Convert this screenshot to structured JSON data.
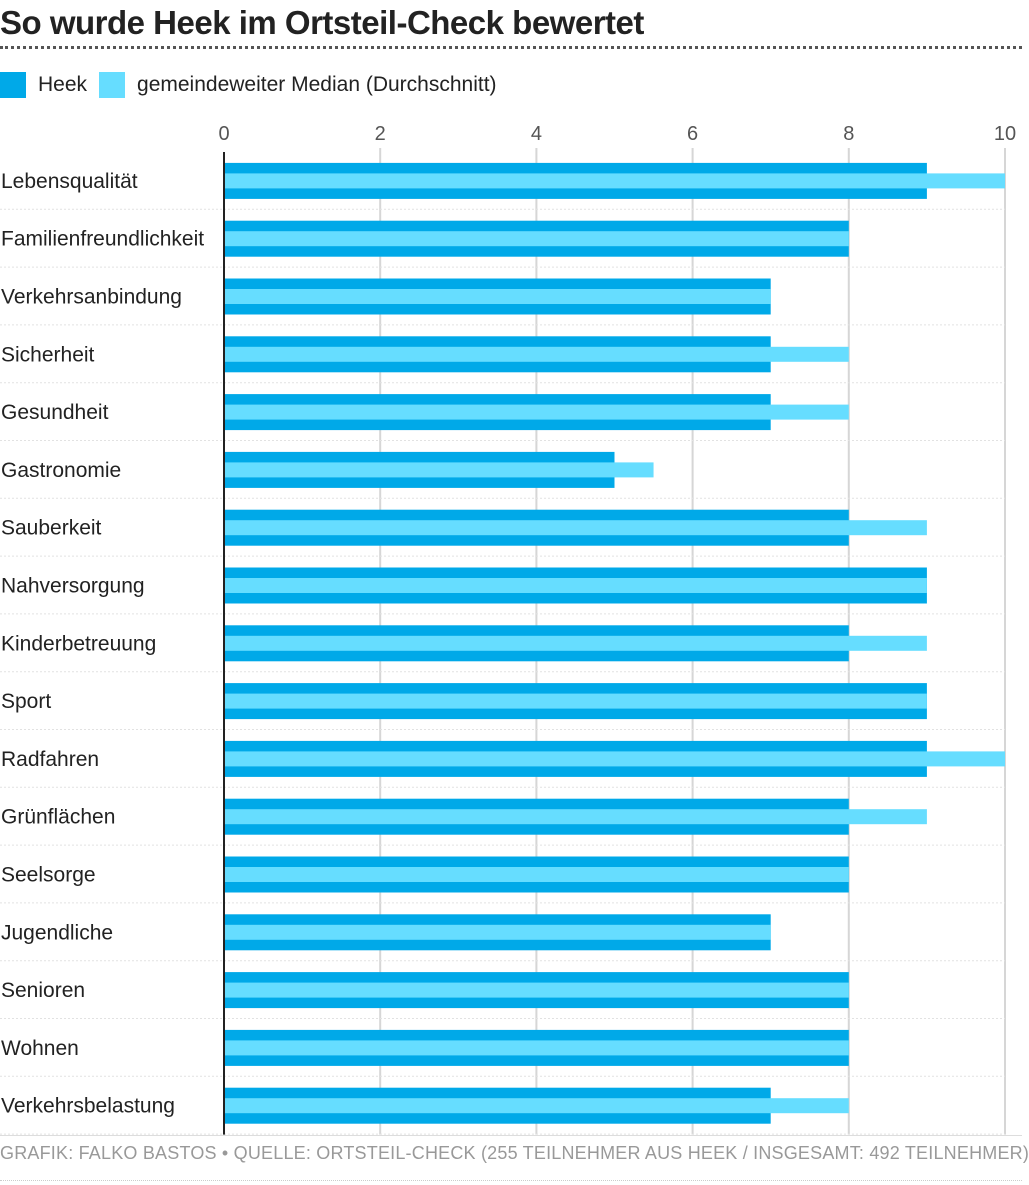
{
  "title": "So wurde Heek im Ortsteil-Check bewertet",
  "legend": [
    {
      "label": "Heek",
      "color": "#00a9e8"
    },
    {
      "label": "gemeindeweiter Median (Durchschnitt)",
      "color": "#66ddff"
    }
  ],
  "footer": "GRAFIK: FALKO BASTOS • QUELLE: ORTSTEIL-CHECK (255 TEILNEHMER AUS HEEK / INSGESAMT: 492 TEILNEHMER)",
  "chart_data": {
    "type": "bar",
    "orientation": "horizontal",
    "categories": [
      "Lebensqualität",
      "Familienfreundlichkeit",
      "Verkehrsanbindung",
      "Sicherheit",
      "Gesundheit",
      "Gastronomie",
      "Sauberkeit",
      "Nahversorgung",
      "Kinderbetreuung",
      "Sport",
      "Radfahren",
      "Grünflächen",
      "Seelsorge",
      "Jugendliche",
      "Senioren",
      "Wohnen",
      "Verkehrsbelastung"
    ],
    "series": [
      {
        "name": "Heek",
        "color": "#00a9e8",
        "values": [
          9,
          8,
          7,
          7,
          7,
          5,
          8,
          9,
          8,
          9,
          9,
          8,
          8,
          7,
          8,
          8,
          7
        ]
      },
      {
        "name": "gemeindeweiter Median (Durchschnitt)",
        "color": "#66ddff",
        "values": [
          10,
          8,
          7,
          8,
          8,
          5.5,
          9,
          9,
          9,
          9,
          10,
          9,
          8,
          7,
          8,
          8,
          8
        ]
      }
    ],
    "xlim": [
      0,
      10
    ],
    "xticks": [
      0,
      2,
      4,
      6,
      8,
      10
    ],
    "grid": true,
    "legend_position": "top-left"
  }
}
